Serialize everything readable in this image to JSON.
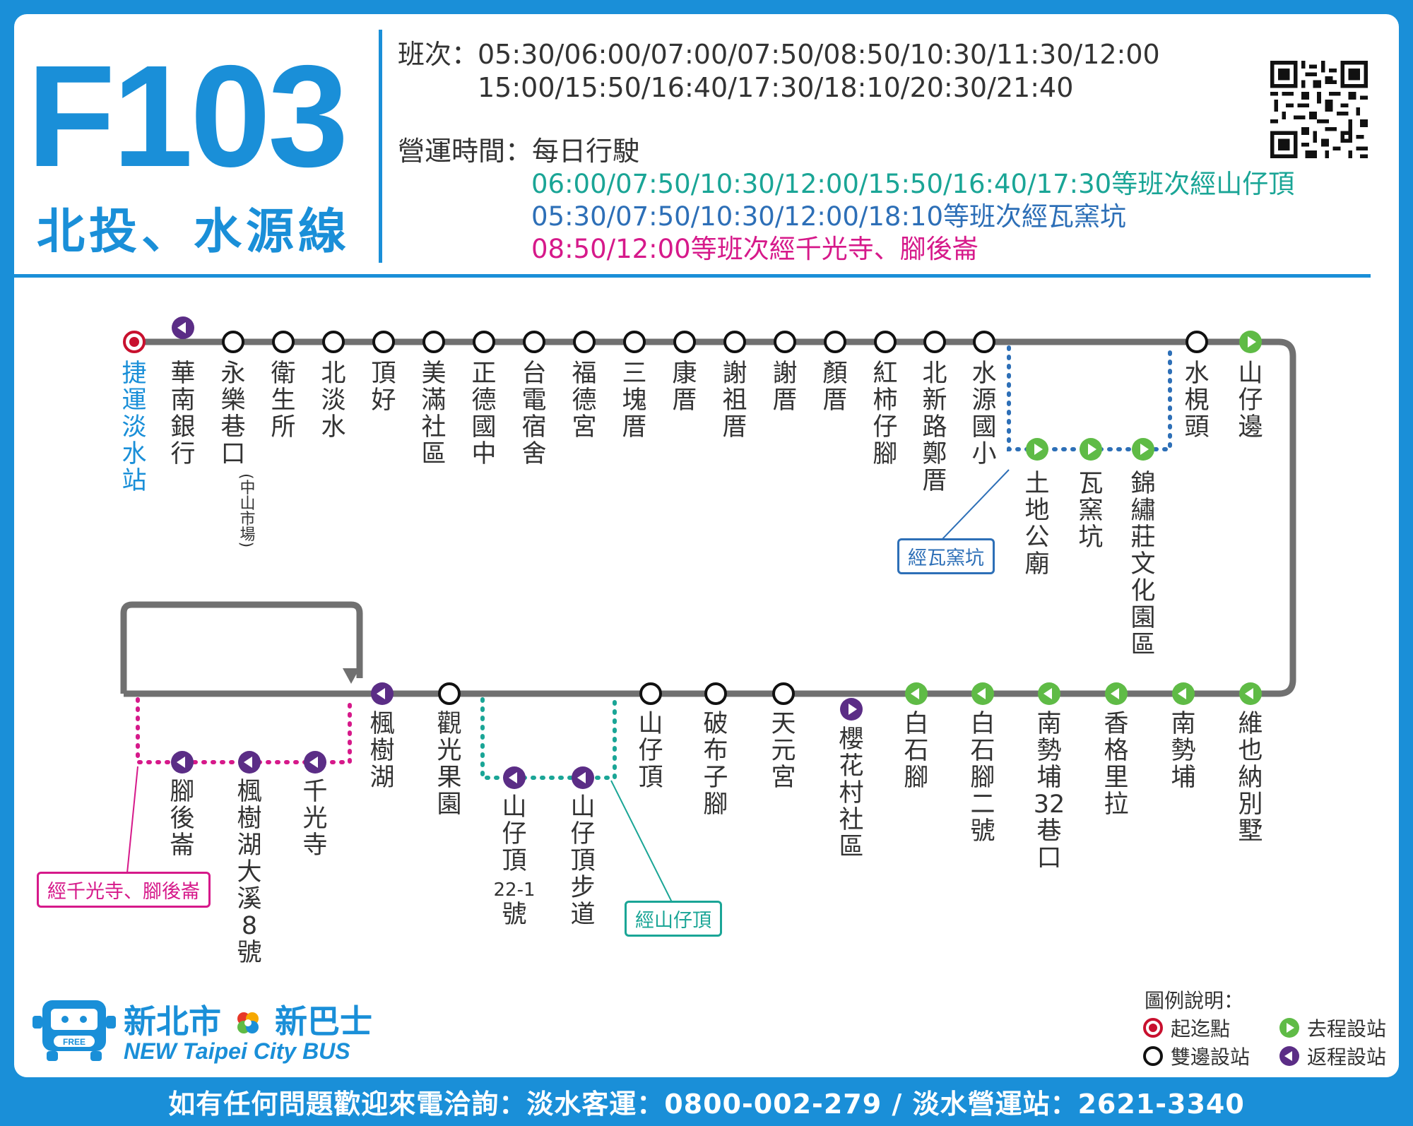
{
  "route": {
    "code": "F103",
    "name": "北投、水源線"
  },
  "schedule": {
    "label": "班次：",
    "times_line1": "05:30/06:00/07:00/07:50/08:50/10:30/11:30/12:00",
    "times_line2": "15:00/15:50/16:40/17:30/18:10/20:30/21:40"
  },
  "operation": {
    "label": "營運時間：每日行駛",
    "note_teal": "06:00/07:50/10:30/12:00/15:50/16:40/17:30等班次經山仔頂",
    "note_blue": "05:30/07:50/10:30/12:00/18:10等班次經瓦窯坑",
    "note_pink": "08:50/12:00等班次經千光寺、腳後崙"
  },
  "colors": {
    "brand_blue": "#1a8fd8",
    "route_line": "#707070",
    "outbound_green": "#5fbb46",
    "return_purple": "#5b2d86",
    "terminal_red": "#c8102e",
    "teal": "#1aa596",
    "blue": "#2d6fb7",
    "pink": "#d6198a"
  },
  "top_stops": [
    {
      "name": "捷運淡水站",
      "type": "terminal"
    },
    {
      "name": "華南銀行",
      "type": "return"
    },
    {
      "name": "永樂巷口",
      "sub": "(中山市場)",
      "type": "both"
    },
    {
      "name": "衛生所",
      "type": "both"
    },
    {
      "name": "北淡水",
      "type": "both"
    },
    {
      "name": "頂好",
      "type": "both"
    },
    {
      "name": "美滿社區",
      "type": "both"
    },
    {
      "name": "正德國中",
      "type": "both"
    },
    {
      "name": "台電宿舍",
      "type": "both"
    },
    {
      "name": "福德宮",
      "type": "both"
    },
    {
      "name": "三塊厝",
      "type": "both"
    },
    {
      "name": "康厝",
      "type": "both"
    },
    {
      "name": "謝祖厝",
      "type": "both"
    },
    {
      "name": "謝厝",
      "type": "both"
    },
    {
      "name": "顏厝",
      "type": "both"
    },
    {
      "name": "紅柿仔腳",
      "type": "both"
    },
    {
      "name": "北新路鄭厝",
      "type": "both"
    },
    {
      "name": "水源國小",
      "type": "both"
    },
    {
      "name": "水梘頭",
      "type": "both"
    },
    {
      "name": "山仔邊",
      "type": "outbound"
    }
  ],
  "wayao_branch": [
    {
      "name": "土地公廟",
      "type": "outbound"
    },
    {
      "name": "瓦窯坑",
      "type": "outbound"
    },
    {
      "name": "錦繡莊文化園區",
      "type": "outbound"
    }
  ],
  "bottom_stops": [
    {
      "name": "楓樹湖",
      "type": "return"
    },
    {
      "name": "觀光果園",
      "type": "both"
    },
    {
      "name": "山仔頂",
      "type": "both"
    },
    {
      "name": "破布子腳",
      "type": "both"
    },
    {
      "name": "天元宮",
      "type": "both"
    },
    {
      "name": "櫻花村社區",
      "type": "outbound_offline"
    },
    {
      "name": "白石腳",
      "type": "return_green"
    },
    {
      "name": "白石腳二號",
      "type": "return_green"
    },
    {
      "name": "南勢埔32巷口",
      "type": "return_green"
    },
    {
      "name": "香格里拉",
      "type": "return_green"
    },
    {
      "name": "南勢埔",
      "type": "return_green"
    },
    {
      "name": "維也納別墅",
      "type": "return_green"
    }
  ],
  "qianguang_branch": [
    {
      "name": "腳後崙",
      "type": "return"
    },
    {
      "name": "楓樹湖大溪8號",
      "type": "return"
    },
    {
      "name": "千光寺",
      "type": "return"
    }
  ],
  "shanzaiding_branch": [
    {
      "name": "山仔頂22-1號",
      "type": "return"
    },
    {
      "name": "山仔頂步道",
      "type": "return"
    }
  ],
  "notes": {
    "wayao": "經瓦窯坑",
    "qianguang": "經千光寺、腳後崙",
    "shanzaiding": "經山仔頂"
  },
  "legend": {
    "title": "圖例說明：",
    "terminal": "起迄點",
    "outbound": "去程設站",
    "both": "雙邊設站",
    "return": "返程設站"
  },
  "logo": {
    "cn_left": "新北市",
    "cn_right": "新巴士",
    "en": "NEW Taipei City BUS",
    "badge": "FREE"
  },
  "footer": {
    "text": "如有任何問題歡迎來電洽詢：淡水客運：0800-002-279 / 淡水營運站：2621-3340"
  }
}
